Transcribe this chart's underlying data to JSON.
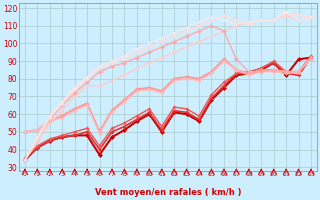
{
  "xlabel": "Vent moyen/en rafales ( km/h )",
  "bg_color": "#cceeff",
  "grid_color": "#aacccc",
  "xlim": [
    -0.5,
    23.5
  ],
  "ylim": [
    28,
    123
  ],
  "yticks": [
    30,
    40,
    50,
    60,
    70,
    80,
    90,
    100,
    110,
    120
  ],
  "xticks": [
    0,
    1,
    2,
    3,
    4,
    5,
    6,
    7,
    8,
    9,
    10,
    11,
    12,
    13,
    14,
    15,
    16,
    17,
    18,
    19,
    20,
    21,
    22,
    23
  ],
  "lines": [
    {
      "x": [
        0,
        1,
        2,
        3,
        4,
        5,
        6,
        7,
        8,
        9,
        10,
        11,
        12,
        13,
        14,
        15,
        16,
        17,
        18,
        19,
        20,
        21,
        22,
        23
      ],
      "y": [
        34,
        41,
        45,
        47,
        48,
        48,
        37,
        47,
        51,
        56,
        60,
        50,
        61,
        60,
        56,
        68,
        75,
        82,
        83,
        85,
        89,
        82,
        91,
        92
      ],
      "color": "#cc0000",
      "lw": 1.5,
      "ms": 2.5
    },
    {
      "x": [
        0,
        1,
        2,
        3,
        4,
        5,
        6,
        7,
        8,
        9,
        10,
        11,
        12,
        13,
        14,
        15,
        16,
        17,
        18,
        19,
        20,
        21,
        22,
        23
      ],
      "y": [
        34,
        41,
        45,
        47,
        48,
        50,
        40,
        50,
        53,
        57,
        61,
        51,
        62,
        61,
        57,
        69,
        76,
        83,
        83,
        86,
        89,
        83,
        82,
        92
      ],
      "color": "#dd3333",
      "lw": 1.2,
      "ms": 2.0
    },
    {
      "x": [
        0,
        1,
        2,
        3,
        4,
        5,
        6,
        7,
        8,
        9,
        10,
        11,
        12,
        13,
        14,
        15,
        16,
        17,
        18,
        19,
        20,
        21,
        22,
        23
      ],
      "y": [
        35,
        42,
        46,
        48,
        50,
        52,
        42,
        52,
        55,
        59,
        63,
        53,
        64,
        63,
        59,
        71,
        78,
        83,
        84,
        86,
        90,
        84,
        84,
        93
      ],
      "color": "#ee5555",
      "lw": 1.0,
      "ms": 2.0
    },
    {
      "x": [
        0,
        1,
        2,
        3,
        4,
        5,
        6,
        7,
        8,
        9,
        10,
        11,
        12,
        13,
        14,
        15,
        16,
        17,
        18,
        19,
        20,
        21,
        22,
        23
      ],
      "y": [
        50,
        51,
        56,
        59,
        63,
        66,
        50,
        62,
        68,
        74,
        75,
        73,
        80,
        81,
        80,
        84,
        91,
        85,
        83,
        85,
        85,
        84,
        84,
        92
      ],
      "color": "#ff9999",
      "lw": 1.5,
      "ms": 2.5
    },
    {
      "x": [
        0,
        1,
        2,
        3,
        4,
        5,
        6,
        7,
        8,
        9,
        10,
        11,
        12,
        13,
        14,
        15,
        16,
        17,
        18,
        19,
        20,
        21,
        22,
        23
      ],
      "y": [
        50,
        51,
        56,
        58,
        62,
        65,
        49,
        61,
        67,
        73,
        74,
        72,
        79,
        80,
        79,
        83,
        90,
        85,
        82,
        84,
        84,
        83,
        84,
        91
      ],
      "color": "#ffbbbb",
      "lw": 1.0,
      "ms": 2.0
    },
    {
      "x": [
        0,
        1,
        2,
        3,
        4,
        5,
        6,
        7,
        8,
        9,
        10,
        11,
        12,
        13,
        14,
        15,
        16,
        17,
        18,
        19,
        20,
        21,
        22,
        23
      ],
      "y": [
        34,
        44,
        55,
        62,
        70,
        76,
        76,
        79,
        82,
        86,
        89,
        92,
        95,
        98,
        101,
        104,
        107,
        110,
        112,
        113,
        113,
        116,
        113,
        115
      ],
      "color": "#ffcccc",
      "lw": 1.0,
      "ms": 2.0
    },
    {
      "x": [
        0,
        1,
        2,
        3,
        4,
        5,
        6,
        7,
        8,
        9,
        10,
        11,
        12,
        13,
        14,
        15,
        16,
        17,
        18,
        19,
        20,
        21,
        22,
        23
      ],
      "y": [
        34,
        46,
        57,
        65,
        72,
        78,
        84,
        87,
        89,
        92,
        95,
        98,
        101,
        104,
        107,
        110,
        107,
        91,
        84,
        84,
        85,
        84,
        84,
        92
      ],
      "color": "#ffaaaa",
      "lw": 1.0,
      "ms": 2.5
    },
    {
      "x": [
        0,
        1,
        2,
        3,
        4,
        5,
        6,
        7,
        8,
        9,
        10,
        11,
        12,
        13,
        14,
        15,
        16,
        17,
        18,
        19,
        20,
        21,
        22,
        23
      ],
      "y": [
        34,
        46,
        58,
        66,
        74,
        80,
        86,
        89,
        91,
        95,
        98,
        101,
        104,
        107,
        110,
        113,
        116,
        113,
        111,
        113,
        113,
        117,
        116,
        115
      ],
      "color": "#ffdddd",
      "lw": 1.0,
      "ms": 2.0
    },
    {
      "x": [
        0,
        1,
        2,
        3,
        4,
        5,
        6,
        7,
        8,
        9,
        10,
        11,
        12,
        13,
        14,
        15,
        16,
        17,
        18,
        19,
        20,
        21,
        22,
        23
      ],
      "y": [
        34,
        47,
        59,
        67,
        75,
        81,
        87,
        90,
        93,
        97,
        100,
        103,
        106,
        109,
        112,
        115,
        113,
        111,
        112,
        113,
        113,
        118,
        113,
        115
      ],
      "color": "#ffe8e8",
      "lw": 0.8,
      "ms": 1.5
    }
  ],
  "arrow_color": "#cc0000"
}
